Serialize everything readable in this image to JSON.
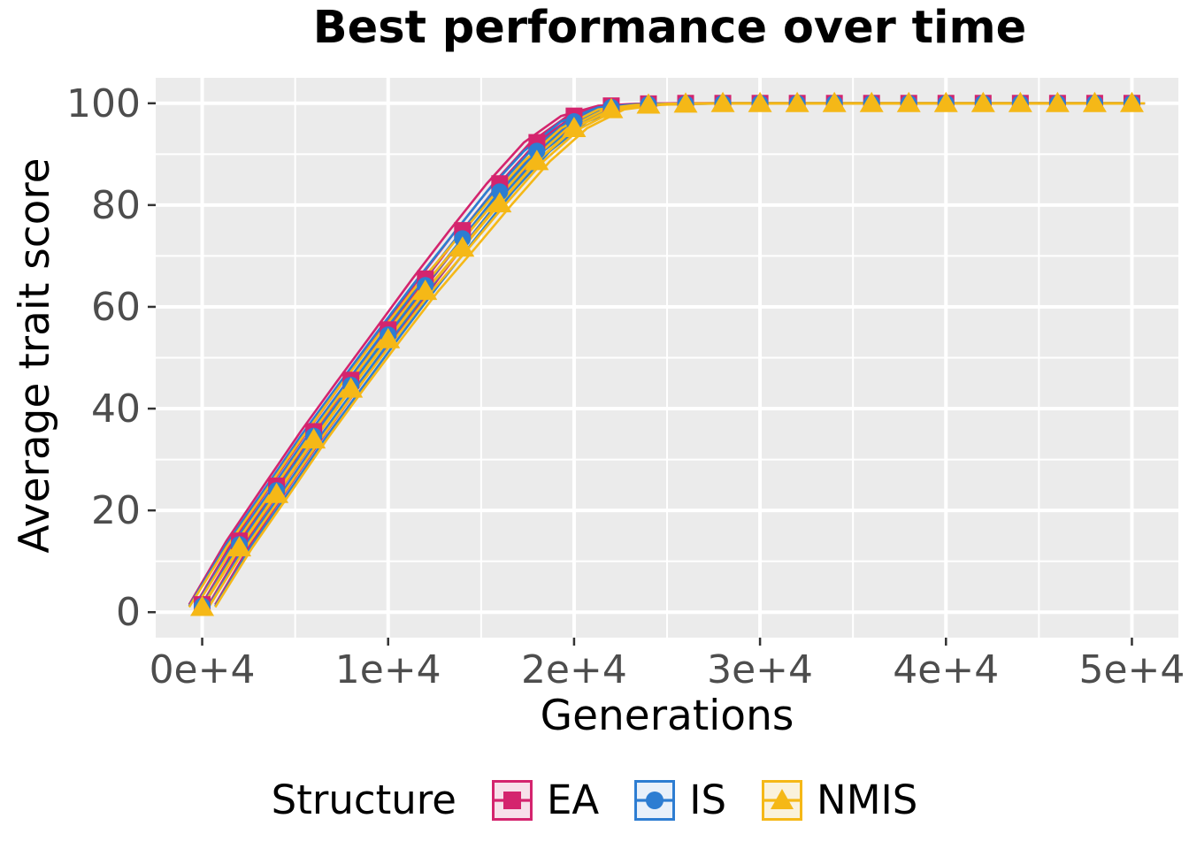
{
  "chart_data": {
    "type": "line",
    "title": "Best performance over time",
    "xlabel": "Generations",
    "ylabel": "Average trait score",
    "xlim": [
      -2500,
      52500
    ],
    "ylim": [
      -5,
      105
    ],
    "x_ticks": [
      0,
      10000,
      20000,
      30000,
      40000,
      50000
    ],
    "x_tick_labels": [
      "0e+4",
      "1e+4",
      "2e+4",
      "3e+4",
      "4e+4",
      "5e+4"
    ],
    "x_minor_ticks": [
      5000,
      15000,
      25000,
      35000,
      45000
    ],
    "y_ticks": [
      0,
      20,
      40,
      60,
      80,
      100
    ],
    "y_tick_labels": [
      "0",
      "20",
      "40",
      "60",
      "80",
      "100"
    ],
    "y_minor_ticks": [
      10,
      30,
      50,
      70,
      90
    ],
    "grid": true,
    "legend_position": "bottom",
    "legend_title": "Structure",
    "panel_bg": "#ebebeb",
    "grid_color": "#ffffff",
    "tick_text_color": "#4d4d4d",
    "tick_mark_color": "#333333",
    "x": [
      0,
      2000,
      4000,
      6000,
      8000,
      10000,
      12000,
      14000,
      16000,
      18000,
      20000,
      22000,
      24000,
      26000,
      28000,
      30000,
      32000,
      34000,
      36000,
      38000,
      40000,
      42000,
      44000,
      46000,
      48000,
      50000
    ],
    "series": [
      {
        "name": "EA",
        "marker": "square",
        "color": "#d4246e",
        "key_fill": "#f7e0ea",
        "values": [
          1.5,
          14.0,
          24.8,
          35.5,
          45.6,
          55.5,
          65.5,
          75.0,
          84.2,
          92.3,
          97.5,
          99.5,
          99.9,
          100,
          100,
          100,
          100,
          100,
          100,
          100,
          100,
          100,
          100,
          100,
          100,
          100
        ]
      },
      {
        "name": "IS",
        "marker": "circle",
        "color": "#2d7dd2",
        "key_fill": "#e8f0fa",
        "values": [
          1.2,
          13.3,
          23.9,
          34.6,
          44.6,
          54.5,
          64.2,
          73.4,
          82.6,
          90.6,
          96.4,
          99.2,
          99.8,
          99.9,
          100,
          100,
          100,
          100,
          100,
          100,
          100,
          100,
          100,
          100,
          100,
          100
        ]
      },
      {
        "name": "NMIS",
        "marker": "triangle",
        "color": "#f5b817",
        "key_fill": "#faf2dc",
        "values": [
          1.0,
          12.7,
          23.2,
          33.9,
          43.9,
          53.6,
          63.1,
          71.6,
          80.3,
          88.6,
          95.1,
          98.8,
          99.7,
          99.9,
          100,
          100,
          100,
          100,
          100,
          100,
          100,
          100,
          100,
          100,
          100,
          100
        ]
      }
    ],
    "replicate_x_shifts": [
      -700,
      -350,
      350,
      700
    ]
  }
}
